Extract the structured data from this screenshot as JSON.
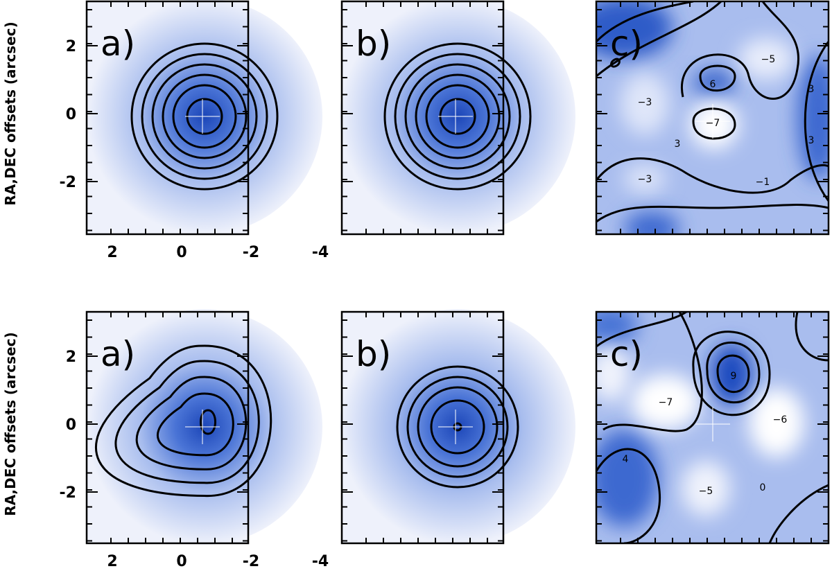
{
  "rows": [
    {
      "y_label": "RA,DEC offsets (arcsec)",
      "yticks": [
        -2,
        0,
        2
      ],
      "xticks": [
        2,
        0,
        -2,
        -4
      ],
      "panels": [
        {
          "label": "a)"
        },
        {
          "label": "b)"
        },
        {
          "label": "c)",
          "contour_labels": [
            "−5",
            "6",
            "−3",
            "−7",
            "3",
            "3",
            "3",
            "−3",
            "−1"
          ]
        }
      ]
    },
    {
      "y_label": "RA,DEC offsets (arcsec)",
      "yticks": [
        -2,
        0,
        2
      ],
      "xticks": [
        2,
        0,
        -2,
        -4
      ],
      "panels": [
        {
          "label": "a)"
        },
        {
          "label": "b)"
        },
        {
          "label": "c)",
          "contour_labels": [
            "9",
            "−7",
            "−6",
            "4",
            "−5",
            "0"
          ]
        }
      ]
    }
  ]
}
